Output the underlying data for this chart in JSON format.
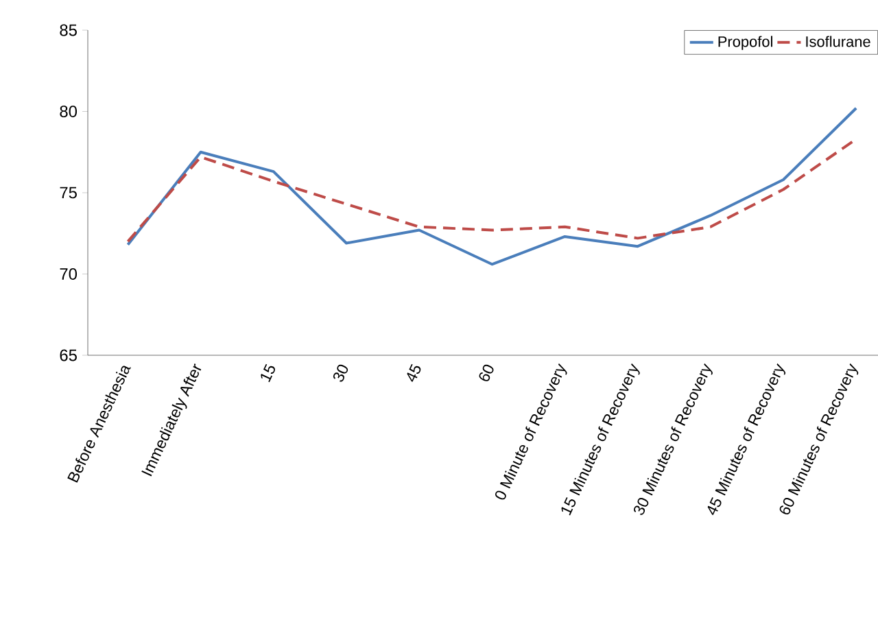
{
  "chart_data": {
    "type": "line",
    "categories": [
      "Before Anesthesia",
      "Immediately After",
      "15",
      "30",
      "45",
      "60",
      "0 Minute of Recovery",
      "15 Minutes of Recovery",
      "30 Minutes of Recovery",
      "45 Minutes of Recovery",
      "60 Minutes of Recovery"
    ],
    "series": [
      {
        "name": "Propofol",
        "color": "#4a7ebb",
        "line_style": "solid",
        "values": [
          71.8,
          77.5,
          76.3,
          71.9,
          72.7,
          70.6,
          72.3,
          71.7,
          73.6,
          75.8,
          80.2
        ]
      },
      {
        "name": "Isoflurane",
        "color": "#be4b48",
        "line_style": "dashed",
        "values": [
          72.0,
          77.2,
          75.7,
          74.3,
          72.9,
          72.7,
          72.9,
          72.2,
          72.9,
          75.2,
          78.3
        ]
      }
    ],
    "ylim": [
      65,
      85
    ],
    "yticks": [
      65,
      70,
      75,
      80,
      85
    ],
    "grid": false,
    "legend": "top right",
    "marker": "none"
  }
}
